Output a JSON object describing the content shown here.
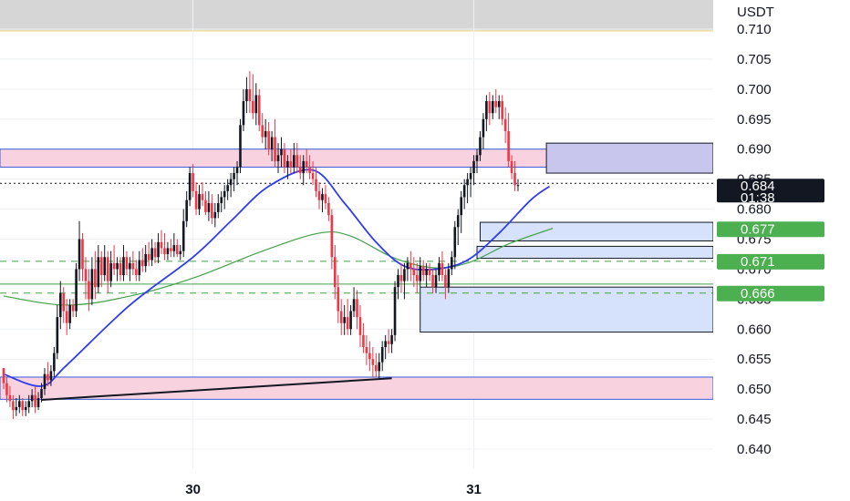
{
  "chart_data": {
    "type": "candlestick",
    "title": "",
    "currency": "USDT",
    "y_axis": {
      "ticks": [
        "0.710",
        "0.705",
        "0.700",
        "0.695",
        "0.690",
        "0.685",
        "0.680",
        "0.675",
        "0.670",
        "0.665",
        "0.660",
        "0.655",
        "0.650",
        "0.645",
        "0.640"
      ],
      "ylim": [
        0.638,
        0.713
      ]
    },
    "x_axis": {
      "ticks": [
        {
          "label": "30",
          "bar": 60
        },
        {
          "label": "31",
          "bar": 149
        }
      ]
    },
    "colors": {
      "up": "#131722",
      "down": "#f23645",
      "ma_fast": "#2f3cf0",
      "ma_slow": "#43a047",
      "zone_pink": "#f8d3df",
      "zone_blue": "#d6e1fb",
      "zone_purple": "#c9c6ee",
      "tag_green": "#4caf50",
      "tag_blue": "#2f3cf0",
      "tag_dark": "#131722"
    },
    "price_tag": {
      "value": "0.684",
      "countdown": "01:38"
    },
    "indicator_tags": [
      {
        "label": "0.684",
        "value": 0.6835,
        "color": "tag_blue"
      },
      {
        "label": "0.677",
        "value": 0.6767,
        "color": "tag_green"
      },
      {
        "label": "0.671",
        "value": 0.6713,
        "color": "tag_green"
      },
      {
        "label": "0.666",
        "value": 0.666,
        "color": "tag_green"
      }
    ],
    "horizontal_levels": [
      {
        "value": 0.6713,
        "style": "dashed",
        "color": "ma_slow"
      },
      {
        "value": 0.666,
        "style": "dashed",
        "color": "ma_slow"
      },
      {
        "value": 0.6675,
        "style": "solid",
        "color": "ma_slow"
      },
      {
        "value": 0.6843,
        "style": "dotted",
        "color": "tag_dark"
      }
    ],
    "zones": [
      {
        "kind": "pink",
        "from_bar": 0,
        "top": 0.69,
        "bottom": 0.687
      },
      {
        "kind": "pink",
        "from_bar": 0,
        "top": 0.652,
        "bottom": 0.6483
      },
      {
        "kind": "purple",
        "from_bar": 172,
        "top": 0.691,
        "bottom": 0.686
      },
      {
        "kind": "blue",
        "from_bar": 151,
        "top": 0.6778,
        "bottom": 0.6747
      },
      {
        "kind": "blue",
        "from_bar": 150,
        "top": 0.6738,
        "bottom": 0.6718
      },
      {
        "kind": "blue",
        "from_bar": 132,
        "top": 0.667,
        "bottom": 0.6595
      }
    ],
    "trendline": {
      "from": {
        "bar": 12,
        "price": 0.6482
      },
      "to": {
        "bar": 123,
        "price": 0.6518
      }
    },
    "candles": [
      [
        0.6535,
        0.6535,
        0.65,
        0.651
      ],
      [
        0.651,
        0.652,
        0.6478,
        0.649
      ],
      [
        0.649,
        0.6505,
        0.647,
        0.648
      ],
      [
        0.648,
        0.649,
        0.645,
        0.6465
      ],
      [
        0.6465,
        0.6485,
        0.6455,
        0.647
      ],
      [
        0.647,
        0.649,
        0.646,
        0.648
      ],
      [
        0.648,
        0.6485,
        0.6455,
        0.6465
      ],
      [
        0.6465,
        0.648,
        0.6455,
        0.647
      ],
      [
        0.647,
        0.649,
        0.646,
        0.648
      ],
      [
        0.648,
        0.65,
        0.647,
        0.649
      ],
      [
        0.649,
        0.6505,
        0.646,
        0.647
      ],
      [
        0.647,
        0.6495,
        0.6465,
        0.6485
      ],
      [
        0.6485,
        0.651,
        0.6478,
        0.65
      ],
      [
        0.65,
        0.6535,
        0.649,
        0.6525
      ],
      [
        0.6525,
        0.6545,
        0.6505,
        0.6515
      ],
      [
        0.6515,
        0.654,
        0.6505,
        0.653
      ],
      [
        0.653,
        0.657,
        0.652,
        0.656
      ],
      [
        0.656,
        0.664,
        0.655,
        0.662
      ],
      [
        0.662,
        0.668,
        0.66,
        0.666
      ],
      [
        0.666,
        0.667,
        0.661,
        0.663
      ],
      [
        0.663,
        0.665,
        0.659,
        0.661
      ],
      [
        0.661,
        0.665,
        0.66,
        0.664
      ],
      [
        0.664,
        0.665,
        0.662,
        0.663
      ],
      [
        0.663,
        0.671,
        0.662,
        0.67
      ],
      [
        0.67,
        0.678,
        0.668,
        0.675
      ],
      [
        0.675,
        0.676,
        0.668,
        0.67
      ],
      [
        0.67,
        0.672,
        0.665,
        0.668
      ],
      [
        0.668,
        0.67,
        0.663,
        0.665
      ],
      [
        0.665,
        0.672,
        0.664,
        0.67
      ],
      [
        0.67,
        0.673,
        0.665,
        0.667
      ],
      [
        0.667,
        0.674,
        0.666,
        0.672
      ],
      [
        0.672,
        0.673,
        0.667,
        0.669
      ],
      [
        0.669,
        0.674,
        0.668,
        0.672
      ],
      [
        0.672,
        0.673,
        0.666,
        0.668
      ],
      [
        0.668,
        0.673,
        0.667,
        0.671
      ],
      [
        0.671,
        0.674,
        0.669,
        0.67
      ],
      [
        0.67,
        0.672,
        0.668,
        0.671
      ],
      [
        0.671,
        0.672,
        0.668,
        0.669
      ],
      [
        0.669,
        0.674,
        0.668,
        0.672
      ],
      [
        0.672,
        0.673,
        0.669,
        0.67
      ],
      [
        0.67,
        0.672,
        0.668,
        0.671
      ],
      [
        0.671,
        0.673,
        0.669,
        0.67
      ],
      [
        0.67,
        0.6715,
        0.668,
        0.669
      ],
      [
        0.669,
        0.673,
        0.668,
        0.6715
      ],
      [
        0.6715,
        0.6735,
        0.6695,
        0.6705
      ],
      [
        0.6705,
        0.674,
        0.6695,
        0.6725
      ],
      [
        0.6725,
        0.6745,
        0.6705,
        0.6715
      ],
      [
        0.6715,
        0.675,
        0.6705,
        0.6735
      ],
      [
        0.6735,
        0.6745,
        0.671,
        0.672
      ],
      [
        0.672,
        0.676,
        0.671,
        0.6745
      ],
      [
        0.6745,
        0.6765,
        0.6725,
        0.6735
      ],
      [
        0.6735,
        0.676,
        0.6715,
        0.6725
      ],
      [
        0.6725,
        0.6745,
        0.6715,
        0.6735
      ],
      [
        0.6735,
        0.675,
        0.672,
        0.673
      ],
      [
        0.673,
        0.676,
        0.672,
        0.674
      ],
      [
        0.674,
        0.675,
        0.672,
        0.6725
      ],
      [
        0.6725,
        0.674,
        0.6715,
        0.673
      ],
      [
        0.673,
        0.68,
        0.672,
        0.678
      ],
      [
        0.678,
        0.683,
        0.677,
        0.6815
      ],
      [
        0.6815,
        0.687,
        0.6805,
        0.686
      ],
      [
        0.686,
        0.6875,
        0.682,
        0.683
      ],
      [
        0.683,
        0.6845,
        0.679,
        0.68
      ],
      [
        0.68,
        0.684,
        0.679,
        0.6825
      ],
      [
        0.6825,
        0.6845,
        0.6805,
        0.6815
      ],
      [
        0.6815,
        0.683,
        0.679,
        0.6795
      ],
      [
        0.6795,
        0.683,
        0.678,
        0.681
      ],
      [
        0.681,
        0.6825,
        0.6775,
        0.6785
      ],
      [
        0.6785,
        0.681,
        0.677,
        0.6795
      ],
      [
        0.6795,
        0.6825,
        0.6785,
        0.681
      ],
      [
        0.681,
        0.683,
        0.6795,
        0.682
      ],
      [
        0.682,
        0.684,
        0.68,
        0.683
      ],
      [
        0.683,
        0.685,
        0.6815,
        0.684
      ],
      [
        0.684,
        0.686,
        0.682,
        0.685
      ],
      [
        0.685,
        0.687,
        0.683,
        0.686
      ],
      [
        0.686,
        0.688,
        0.684,
        0.687
      ],
      [
        0.687,
        0.695,
        0.686,
        0.694
      ],
      [
        0.694,
        0.7,
        0.693,
        0.698
      ],
      [
        0.698,
        0.702,
        0.696,
        0.7
      ],
      [
        0.7,
        0.703,
        0.696,
        0.698
      ],
      [
        0.698,
        0.7025,
        0.695,
        0.696
      ],
      [
        0.696,
        0.701,
        0.694,
        0.699
      ],
      [
        0.699,
        0.7,
        0.693,
        0.694
      ],
      [
        0.694,
        0.696,
        0.691,
        0.692
      ],
      [
        0.692,
        0.695,
        0.69,
        0.693
      ],
      [
        0.693,
        0.6945,
        0.689,
        0.69
      ],
      [
        0.69,
        0.693,
        0.688,
        0.692
      ],
      [
        0.692,
        0.695,
        0.687,
        0.688
      ],
      [
        0.688,
        0.691,
        0.686,
        0.689
      ],
      [
        0.689,
        0.692,
        0.687,
        0.69
      ],
      [
        0.69,
        0.691,
        0.686,
        0.687
      ],
      [
        0.687,
        0.689,
        0.685,
        0.688
      ],
      [
        0.688,
        0.69,
        0.686,
        0.687
      ],
      [
        0.687,
        0.691,
        0.686,
        0.689
      ],
      [
        0.689,
        0.691,
        0.686,
        0.687
      ],
      [
        0.687,
        0.689,
        0.685,
        0.686
      ],
      [
        0.686,
        0.689,
        0.684,
        0.688
      ],
      [
        0.688,
        0.69,
        0.686,
        0.687
      ],
      [
        0.687,
        0.689,
        0.685,
        0.686
      ],
      [
        0.686,
        0.688,
        0.684,
        0.685
      ],
      [
        0.685,
        0.687,
        0.682,
        0.683
      ],
      [
        0.683,
        0.6845,
        0.68,
        0.6815
      ],
      [
        0.6815,
        0.6835,
        0.6795,
        0.6825
      ],
      [
        0.6825,
        0.684,
        0.68,
        0.681
      ],
      [
        0.681,
        0.682,
        0.678,
        0.679
      ],
      [
        0.679,
        0.68,
        0.67,
        0.672
      ],
      [
        0.672,
        0.674,
        0.665,
        0.667
      ],
      [
        0.667,
        0.669,
        0.661,
        0.663
      ],
      [
        0.663,
        0.665,
        0.659,
        0.661
      ],
      [
        0.661,
        0.664,
        0.659,
        0.662
      ],
      [
        0.662,
        0.665,
        0.659,
        0.66
      ],
      [
        0.66,
        0.664,
        0.659,
        0.663
      ],
      [
        0.663,
        0.667,
        0.662,
        0.665
      ],
      [
        0.665,
        0.6665,
        0.66,
        0.662
      ],
      [
        0.662,
        0.664,
        0.657,
        0.659
      ],
      [
        0.659,
        0.661,
        0.656,
        0.657
      ],
      [
        0.657,
        0.659,
        0.654,
        0.656
      ],
      [
        0.656,
        0.658,
        0.653,
        0.655
      ],
      [
        0.655,
        0.657,
        0.652,
        0.654
      ],
      [
        0.654,
        0.656,
        0.652,
        0.653
      ],
      [
        0.653,
        0.656,
        0.6518,
        0.6545
      ],
      [
        0.6545,
        0.658,
        0.653,
        0.657
      ],
      [
        0.657,
        0.659,
        0.655,
        0.658
      ],
      [
        0.658,
        0.66,
        0.656,
        0.6575
      ],
      [
        0.6575,
        0.66,
        0.656,
        0.659
      ],
      [
        0.659,
        0.668,
        0.658,
        0.667
      ],
      [
        0.667,
        0.67,
        0.665,
        0.669
      ],
      [
        0.669,
        0.671,
        0.666,
        0.668
      ],
      [
        0.668,
        0.671,
        0.665,
        0.67
      ],
      [
        0.67,
        0.672,
        0.668,
        0.671
      ],
      [
        0.671,
        0.673,
        0.668,
        0.67
      ],
      [
        0.67,
        0.672,
        0.667,
        0.669
      ],
      [
        0.669,
        0.671,
        0.666,
        0.668
      ],
      [
        0.668,
        0.672,
        0.667,
        0.6705
      ],
      [
        0.6705,
        0.6715,
        0.668,
        0.669
      ],
      [
        0.669,
        0.671,
        0.667,
        0.67
      ],
      [
        0.67,
        0.671,
        0.668,
        0.669
      ],
      [
        0.669,
        0.67,
        0.666,
        0.667
      ],
      [
        0.667,
        0.67,
        0.666,
        0.669
      ],
      [
        0.669,
        0.672,
        0.668,
        0.671
      ],
      [
        0.671,
        0.673,
        0.668,
        0.669
      ],
      [
        0.669,
        0.67,
        0.665,
        0.667
      ],
      [
        0.667,
        0.671,
        0.666,
        0.67
      ],
      [
        0.67,
        0.673,
        0.669,
        0.672
      ],
      [
        0.672,
        0.678,
        0.67,
        0.677
      ],
      [
        0.677,
        0.68,
        0.674,
        0.679
      ],
      [
        0.679,
        0.683,
        0.676,
        0.682
      ],
      [
        0.682,
        0.685,
        0.68,
        0.684
      ],
      [
        0.684,
        0.686,
        0.681,
        0.685
      ],
      [
        0.685,
        0.687,
        0.682,
        0.686
      ],
      [
        0.686,
        0.689,
        0.684,
        0.688
      ],
      [
        0.688,
        0.69,
        0.686,
        0.689
      ],
      [
        0.689,
        0.693,
        0.688,
        0.692
      ],
      [
        0.692,
        0.696,
        0.69,
        0.695
      ],
      [
        0.695,
        0.699,
        0.693,
        0.698
      ],
      [
        0.698,
        0.6995,
        0.694,
        0.696
      ],
      [
        0.696,
        0.699,
        0.695,
        0.698
      ],
      [
        0.698,
        0.7,
        0.696,
        0.697
      ],
      [
        0.697,
        0.699,
        0.695,
        0.698
      ],
      [
        0.698,
        0.699,
        0.694,
        0.695
      ],
      [
        0.695,
        0.697,
        0.691,
        0.693
      ],
      [
        0.693,
        0.696,
        0.687,
        0.688
      ],
      [
        0.688,
        0.689,
        0.685,
        0.686
      ],
      [
        0.686,
        0.688,
        0.683,
        0.684
      ],
      [
        0.684,
        0.685,
        0.683,
        0.684
      ]
    ],
    "ma_fast": [
      {
        "bar": 0,
        "price": 0.6525
      },
      {
        "bar": 12,
        "price": 0.6505
      },
      {
        "bar": 20,
        "price": 0.654
      },
      {
        "bar": 40,
        "price": 0.664
      },
      {
        "bar": 60,
        "price": 0.672
      },
      {
        "bar": 72,
        "price": 0.678
      },
      {
        "bar": 84,
        "price": 0.6838
      },
      {
        "bar": 98,
        "price": 0.6865
      },
      {
        "bar": 108,
        "price": 0.681
      },
      {
        "bar": 118,
        "price": 0.6745
      },
      {
        "bar": 127,
        "price": 0.6705
      },
      {
        "bar": 137,
        "price": 0.67
      },
      {
        "bar": 147,
        "price": 0.6715
      },
      {
        "bar": 157,
        "price": 0.676
      },
      {
        "bar": 167,
        "price": 0.6815
      },
      {
        "bar": 173,
        "price": 0.6838
      }
    ],
    "ma_slow": [
      {
        "bar": 0,
        "price": 0.6655
      },
      {
        "bar": 20,
        "price": 0.664
      },
      {
        "bar": 40,
        "price": 0.6655
      },
      {
        "bar": 60,
        "price": 0.6685
      },
      {
        "bar": 82,
        "price": 0.673
      },
      {
        "bar": 100,
        "price": 0.676
      },
      {
        "bar": 110,
        "price": 0.6755
      },
      {
        "bar": 124,
        "price": 0.6718
      },
      {
        "bar": 137,
        "price": 0.6702
      },
      {
        "bar": 148,
        "price": 0.6712
      },
      {
        "bar": 160,
        "price": 0.6742
      },
      {
        "bar": 174,
        "price": 0.6768
      }
    ]
  }
}
